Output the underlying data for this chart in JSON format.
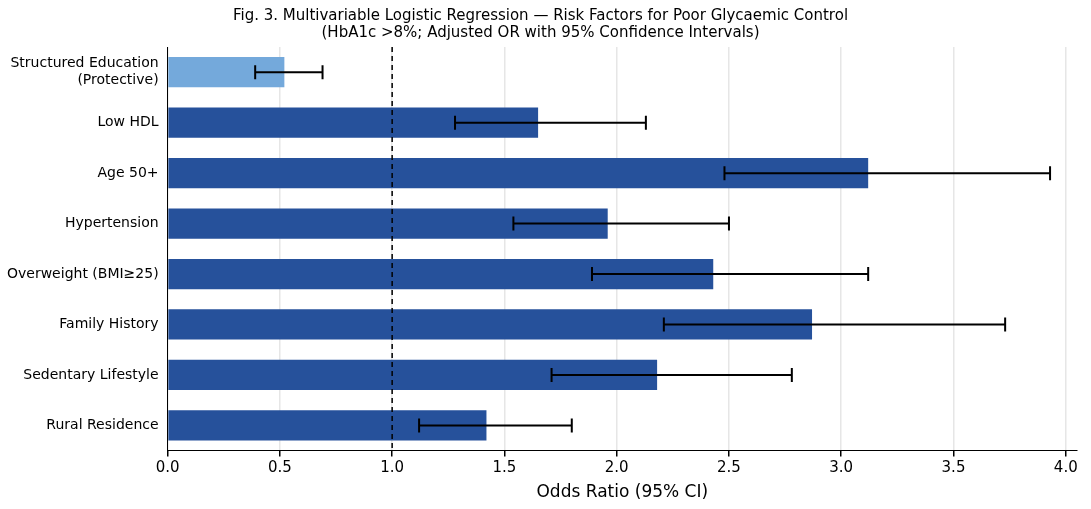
{
  "chart_data": {
    "type": "bar",
    "orientation": "horizontal",
    "title": "Fig. 3. Multivariable Logistic Regression — Risk Factors for Poor Glycaemic Control\n(HbA1c >8%; Adjusted OR with 95% Confidence Intervals)",
    "xlabel": "Odds Ratio (95% CI)",
    "categories": [
      "Structured Education\n(Protective)",
      "Low HDL",
      "Age 50+",
      "Hypertension",
      "Overweight (BMI≥25)",
      "Family History",
      "Sedentary Lifestyle",
      "Rural Residence"
    ],
    "values": [
      0.52,
      1.65,
      3.12,
      1.96,
      2.43,
      2.87,
      2.18,
      1.42
    ],
    "colors": [
      "#74a9db",
      "#26519b",
      "#26519b",
      "#26519b",
      "#26519b",
      "#26519b",
      "#26519b",
      "#26519b"
    ],
    "errors": [
      [
        0.39,
        0.69
      ],
      [
        1.28,
        2.13
      ],
      [
        2.48,
        3.93
      ],
      [
        1.54,
        2.5
      ],
      [
        1.89,
        3.12
      ],
      [
        2.21,
        3.73
      ],
      [
        1.71,
        2.78
      ],
      [
        1.12,
        1.8
      ]
    ],
    "xlim": [
      0,
      4.05
    ],
    "xticks": [
      {
        "value": 0,
        "label": "0.0"
      },
      {
        "value": 0.5,
        "label": "0.5"
      },
      {
        "value": 1,
        "label": "1.0"
      },
      {
        "value": 1.5,
        "label": "1.5"
      },
      {
        "value": 2,
        "label": "2.0"
      },
      {
        "value": 2.5,
        "label": "2.5"
      },
      {
        "value": 3,
        "label": "3.0"
      },
      {
        "value": 3.5,
        "label": "3.5"
      },
      {
        "value": 4,
        "label": "4.0"
      }
    ],
    "ref_lines": [
      {
        "axis": "x",
        "value": 1,
        "color": "#000000",
        "line_style": "dashed"
      }
    ],
    "grid": "x",
    "legend": false
  }
}
